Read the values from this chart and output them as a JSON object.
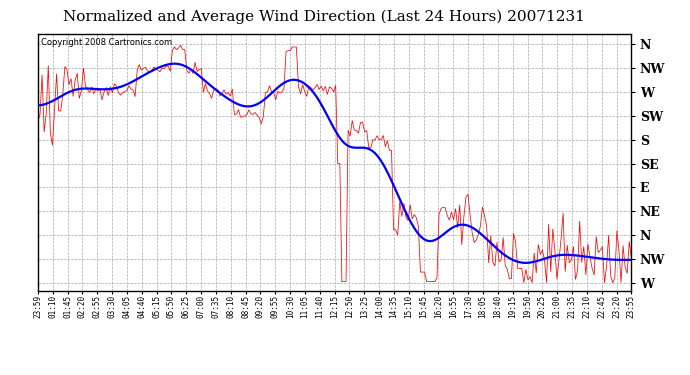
{
  "title": "Normalized and Average Wind Direction (Last 24 Hours) 20071231",
  "copyright": "Copyright 2008 Cartronics.com",
  "ytick_labels": [
    "N",
    "NW",
    "W",
    "SW",
    "S",
    "SE",
    "E",
    "NE",
    "N",
    "NW",
    "W"
  ],
  "ytick_values": [
    0,
    45,
    90,
    135,
    180,
    225,
    270,
    315,
    360,
    405,
    450
  ],
  "xtick_labels": [
    "23:59",
    "01:10",
    "01:45",
    "02:20",
    "02:55",
    "03:30",
    "04:05",
    "04:40",
    "05:15",
    "05:50",
    "06:25",
    "07:00",
    "07:35",
    "08:10",
    "08:45",
    "09:20",
    "09:55",
    "10:30",
    "11:05",
    "11:40",
    "12:15",
    "12:50",
    "13:25",
    "14:00",
    "14:35",
    "15:10",
    "15:45",
    "16:20",
    "16:55",
    "17:30",
    "18:05",
    "18:40",
    "19:15",
    "19:50",
    "20:25",
    "21:00",
    "21:35",
    "22:10",
    "22:45",
    "23:20",
    "23:55"
  ],
  "background_color": "#ffffff",
  "plot_bg_color": "#ffffff",
  "grid_color": "#aaaaaa",
  "title_fontsize": 11,
  "red_line_color": "#ff0000",
  "blue_line_color": "#0000ff",
  "ymin": -20,
  "ymax": 465,
  "n_points": 288
}
